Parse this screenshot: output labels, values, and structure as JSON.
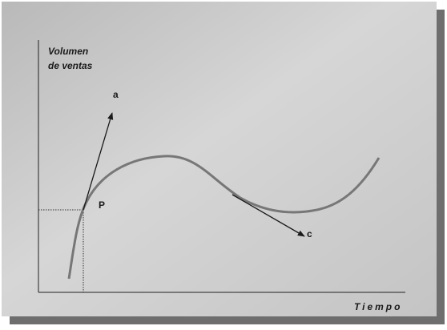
{
  "y_axis_label": [
    "Volumen",
    "de ventas"
  ],
  "x_axis_label": "Tiempo",
  "labels": {
    "a": "a",
    "p": "P",
    "c": "c"
  }
}
